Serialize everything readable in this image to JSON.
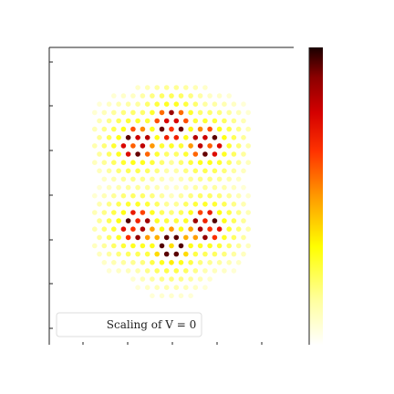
{
  "chart_data": {
    "type": "scatter",
    "legend": {
      "text": "Scaling of V = 0",
      "placement": "lower-center"
    },
    "grid": false,
    "colorbar": {
      "colormap": "hot_r",
      "colors": [
        "#ffffff",
        "#ffff9e",
        "#ffff00",
        "#ff9900",
        "#ff3300",
        "#d40000",
        "#8b0000",
        "#1a0000"
      ],
      "range": [
        0,
        1
      ]
    },
    "lobes": [
      {
        "name": "upper",
        "centers": [
          [
            -2.0,
            1.5
          ],
          [
            0.0,
            2.6
          ],
          [
            2.0,
            1.5
          ]
        ],
        "spread": 1.0
      },
      {
        "name": "lower",
        "centers": [
          [
            -2.0,
            -3.2
          ],
          [
            0.0,
            -4.3
          ],
          [
            2.0,
            -3.2
          ]
        ],
        "spread": 1.0
      }
    ],
    "lattice": {
      "spacing": 0.55,
      "x_range": [
        -4.4,
        4.4
      ],
      "y_range": [
        -7.2,
        4.9
      ]
    },
    "xlim": [
      -7,
      7
    ],
    "ylim": [
      -10,
      7
    ]
  }
}
